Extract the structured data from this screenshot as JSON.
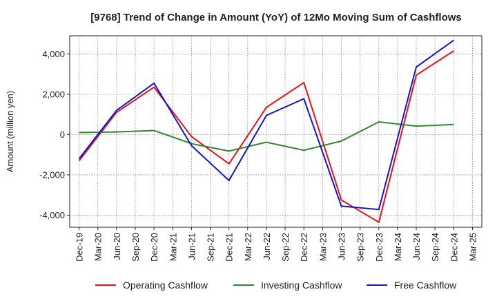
{
  "chart_data": {
    "type": "line",
    "title": "[9768]  Trend of Change in Amount (YoY) of 12Mo Moving Sum of Cashflows",
    "xlabel": "",
    "ylabel": "Amount (million yen)",
    "ylim": [
      -4600,
      4900
    ],
    "yticks": [
      4000,
      2000,
      0,
      -2000,
      -4000
    ],
    "ytick_labels": [
      "4,000",
      "2,000",
      "0",
      "-2,000",
      "-4,000"
    ],
    "categories": [
      "Dec-19",
      "Mar-20",
      "Jun-20",
      "Sep-20",
      "Dec-20",
      "Mar-21",
      "Jun-21",
      "Sep-21",
      "Dec-21",
      "Mar-22",
      "Jun-22",
      "Sep-22",
      "Dec-22",
      "Mar-23",
      "Jun-23",
      "Sep-23",
      "Dec-23",
      "Mar-24",
      "Jun-24",
      "Sep-24",
      "Dec-24",
      "Mar-25"
    ],
    "grid": true,
    "legend_position": "bottom",
    "series": [
      {
        "name": "Operating Cashflow",
        "color": "#e8111b",
        "values": [
          -1300,
          null,
          1100,
          null,
          2350,
          null,
          -100,
          null,
          -1450,
          null,
          1350,
          null,
          2580,
          null,
          -3250,
          null,
          -4350,
          null,
          2950,
          null,
          4150,
          null
        ]
      },
      {
        "name": "Investing Cashflow",
        "color": "#2a8a2a",
        "values": [
          100,
          null,
          130,
          null,
          200,
          null,
          -450,
          null,
          -820,
          null,
          -380,
          null,
          -780,
          null,
          -320,
          null,
          630,
          null,
          420,
          null,
          500,
          null
        ]
      },
      {
        "name": "Free Cashflow",
        "color": "#1212d0",
        "values": [
          -1200,
          null,
          1200,
          null,
          2550,
          null,
          -550,
          null,
          -2280,
          null,
          950,
          null,
          1780,
          null,
          -3550,
          null,
          -3720,
          null,
          3350,
          null,
          4680,
          null
        ]
      }
    ]
  }
}
